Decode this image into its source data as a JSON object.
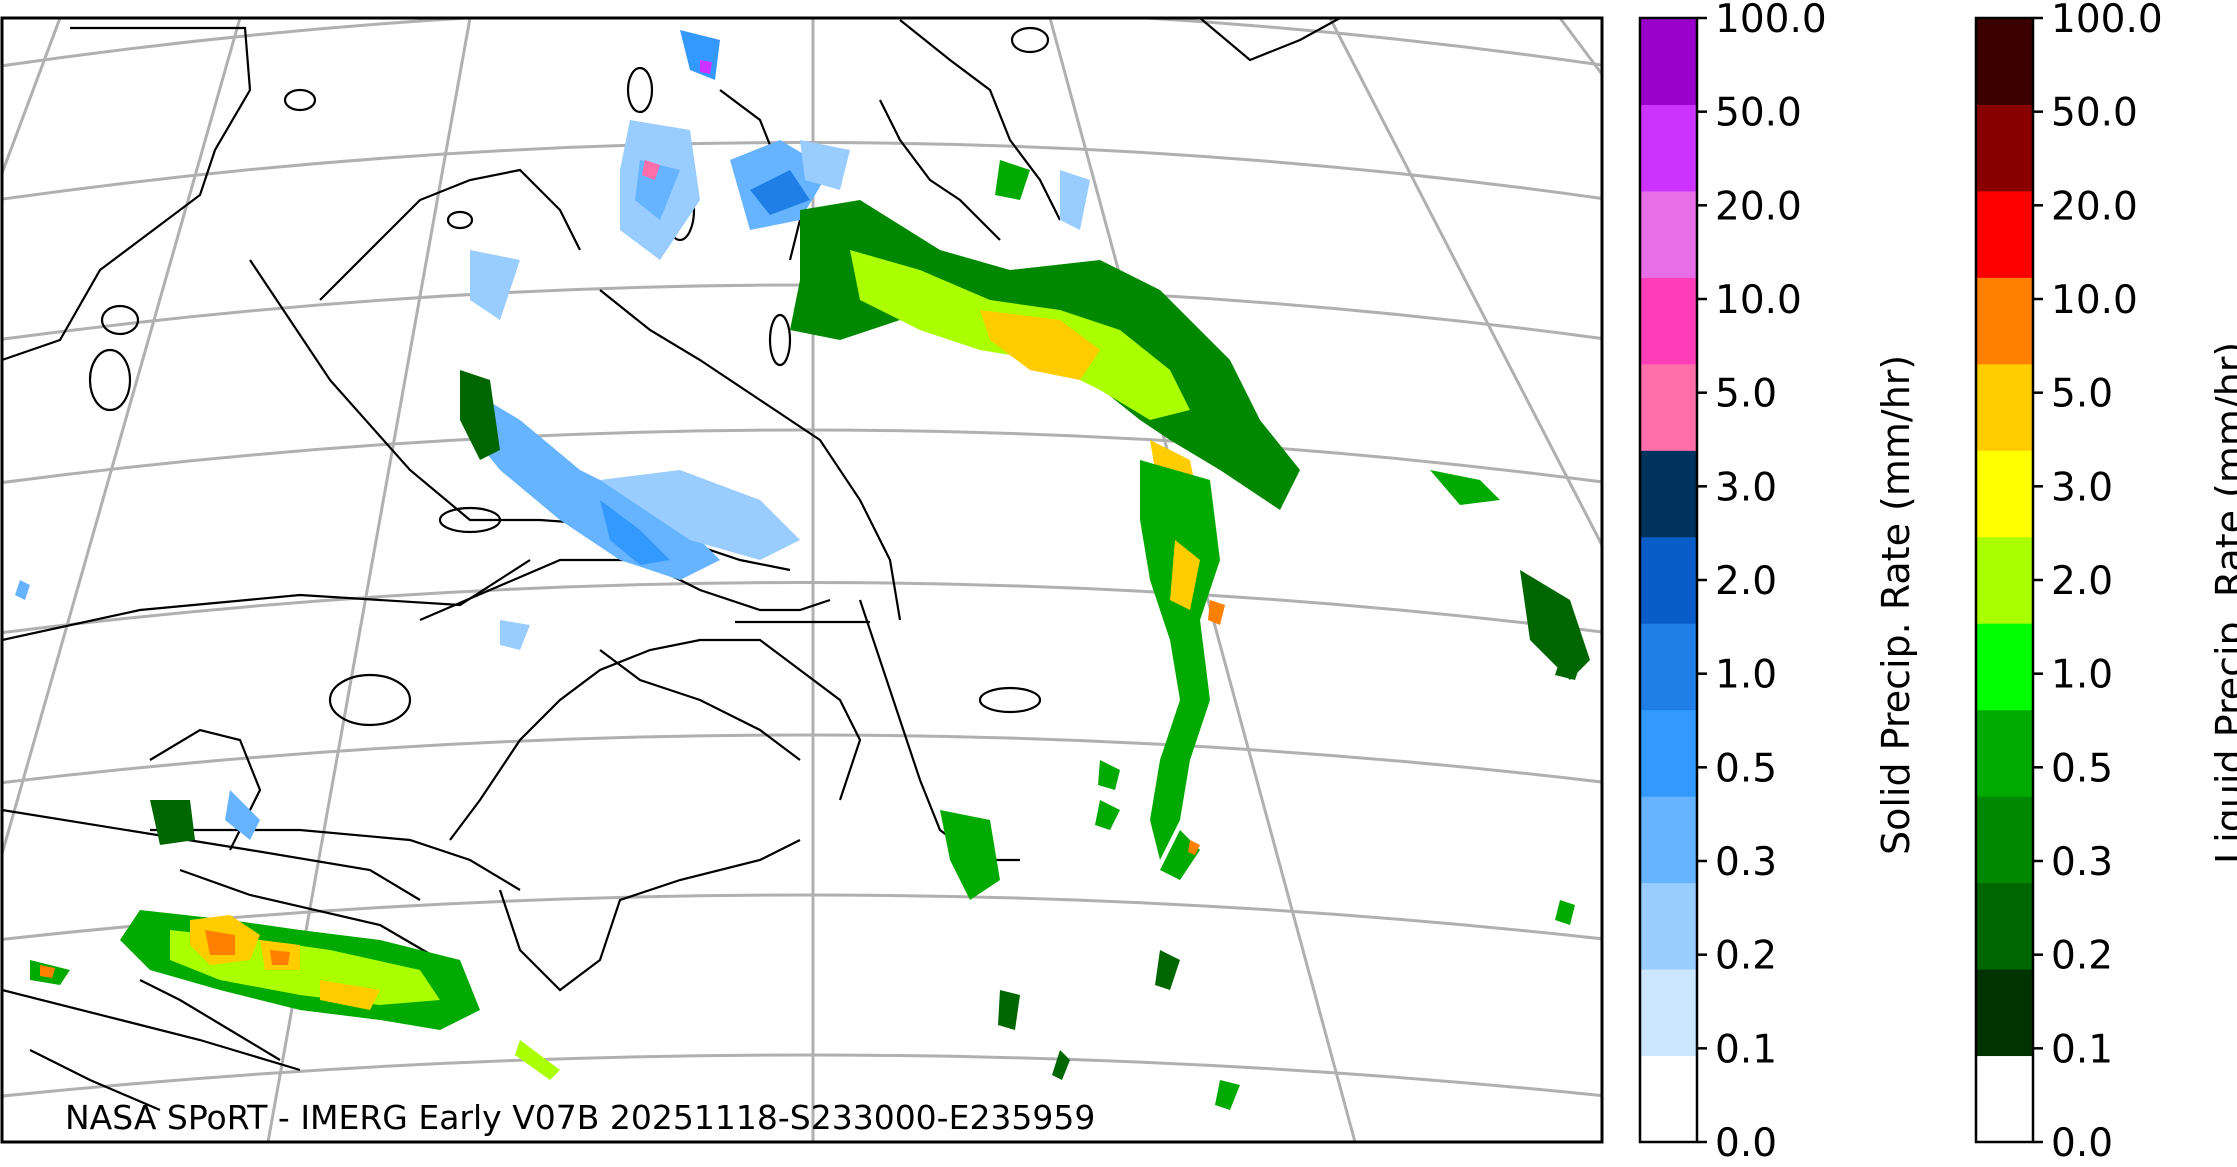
{
  "footer_text": "NASA SPoRT - IMERG Early V07B 20251118-S233000-E235959",
  "solid_colorbar": {
    "title": "Solid Precip. Rate (mm/hr)",
    "ticks": [
      "0.0",
      "0.1",
      "0.2",
      "0.3",
      "0.5",
      "1.0",
      "2.0",
      "3.0",
      "5.0",
      "10.0",
      "20.0",
      "50.0",
      "100.0"
    ],
    "colors": [
      "#ffffff",
      "#cce6ff",
      "#99ccff",
      "#66b3ff",
      "#3399ff",
      "#1f7fe6",
      "#0a5cc8",
      "#00325e",
      "#ff6ea8",
      "#ff3db8",
      "#e66ee6",
      "#cc33ff",
      "#9900cc"
    ]
  },
  "liquid_colorbar": {
    "title": "Liquid Precip. Rate (mm/hr)",
    "ticks": [
      "0.0",
      "0.1",
      "0.2",
      "0.3",
      "0.5",
      "1.0",
      "2.0",
      "3.0",
      "5.0",
      "10.0",
      "20.0",
      "50.0",
      "100.0"
    ],
    "colors": [
      "#ffffff",
      "#003300",
      "#006600",
      "#008800",
      "#00aa00",
      "#00ff00",
      "#aaff00",
      "#ffff00",
      "#ffcc00",
      "#ff7f00",
      "#ff0000",
      "#880000",
      "#3a0000"
    ]
  }
}
